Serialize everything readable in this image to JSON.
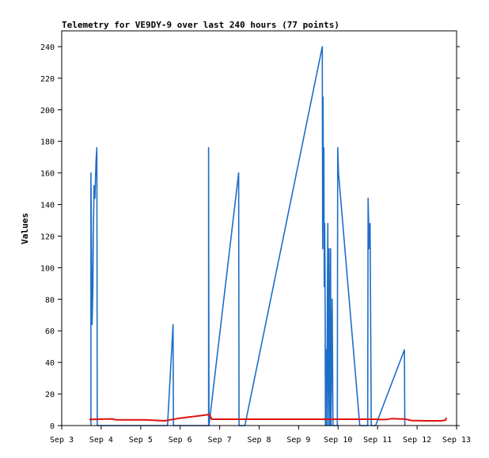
{
  "chart_data": {
    "type": "line",
    "title": "Telemetry for VE9DY-9 over last 240 hours (77 points)",
    "xlabel": "",
    "ylabel": "Values",
    "x_ticks": [
      "Sep 3",
      "Sep 4",
      "Sep 5",
      "Sep 6",
      "Sep 7",
      "Sep 8",
      "Sep 9",
      "Sep 10",
      "Sep 11",
      "Sep 12",
      "Sep 13"
    ],
    "xlim": [
      0,
      10
    ],
    "x_unit": "days from Sep 3 00:00",
    "ylim": [
      0,
      250
    ],
    "y_ticks": [
      0,
      20,
      40,
      60,
      80,
      100,
      120,
      140,
      160,
      180,
      200,
      220,
      240
    ],
    "grid": false,
    "legend": "none",
    "series": [
      {
        "color": "#1e6ec8",
        "points": [
          [
            0.74,
            0
          ],
          [
            0.74,
            160
          ],
          [
            0.75,
            128
          ],
          [
            0.77,
            64
          ],
          [
            0.79,
            88
          ],
          [
            0.8,
            120
          ],
          [
            0.82,
            152
          ],
          [
            0.84,
            144
          ],
          [
            0.87,
            168
          ],
          [
            0.89,
            176
          ],
          [
            0.9,
            0
          ],
          [
            2.68,
            0
          ],
          [
            2.82,
            64
          ],
          [
            2.83,
            0
          ],
          [
            3.72,
            0
          ],
          [
            3.72,
            176
          ],
          [
            3.73,
            0
          ],
          [
            4.48,
            160
          ],
          [
            4.49,
            0
          ],
          [
            4.64,
            0
          ],
          [
            6.6,
            240
          ],
          [
            6.61,
            112
          ],
          [
            6.62,
            208
          ],
          [
            6.63,
            128
          ],
          [
            6.64,
            176
          ],
          [
            6.65,
            88
          ],
          [
            6.66,
            128
          ],
          [
            6.67,
            96
          ],
          [
            6.68,
            0
          ],
          [
            6.7,
            48
          ],
          [
            6.71,
            0
          ],
          [
            6.74,
            128
          ],
          [
            6.75,
            0
          ],
          [
            6.77,
            112
          ],
          [
            6.79,
            0
          ],
          [
            6.81,
            112
          ],
          [
            6.82,
            0
          ],
          [
            6.85,
            80
          ],
          [
            6.87,
            0
          ],
          [
            6.98,
            0
          ],
          [
            6.99,
            176
          ],
          [
            7.01,
            160
          ],
          [
            7.55,
            0
          ],
          [
            7.75,
            0
          ],
          [
            7.76,
            144
          ],
          [
            7.79,
            112
          ],
          [
            7.81,
            128
          ],
          [
            7.84,
            0
          ],
          [
            7.94,
            0
          ],
          [
            7.95,
            0
          ],
          [
            8.68,
            48
          ],
          [
            8.69,
            0
          ]
        ]
      },
      {
        "color": "#e01010",
        "points": [
          [
            0.7,
            3.9
          ],
          [
            1.28,
            4.2
          ],
          [
            1.38,
            3.6
          ],
          [
            2.1,
            3.6
          ],
          [
            2.6,
            3.0
          ],
          [
            2.98,
            4.6
          ],
          [
            3.74,
            7.0
          ],
          [
            3.8,
            4.0
          ],
          [
            7.22,
            4.0
          ],
          [
            7.98,
            4.0
          ],
          [
            8.08,
            3.8
          ],
          [
            8.24,
            3.9
          ],
          [
            8.36,
            4.4
          ],
          [
            8.7,
            4.1
          ],
          [
            8.86,
            3.2
          ],
          [
            9.25,
            3.0
          ],
          [
            9.6,
            3.0
          ],
          [
            9.72,
            3.4
          ],
          [
            9.74,
            5.0
          ]
        ]
      },
      {
        "color": "#000000",
        "points": [
          [
            0.7,
            0
          ],
          [
            9.74,
            0
          ]
        ]
      }
    ]
  }
}
